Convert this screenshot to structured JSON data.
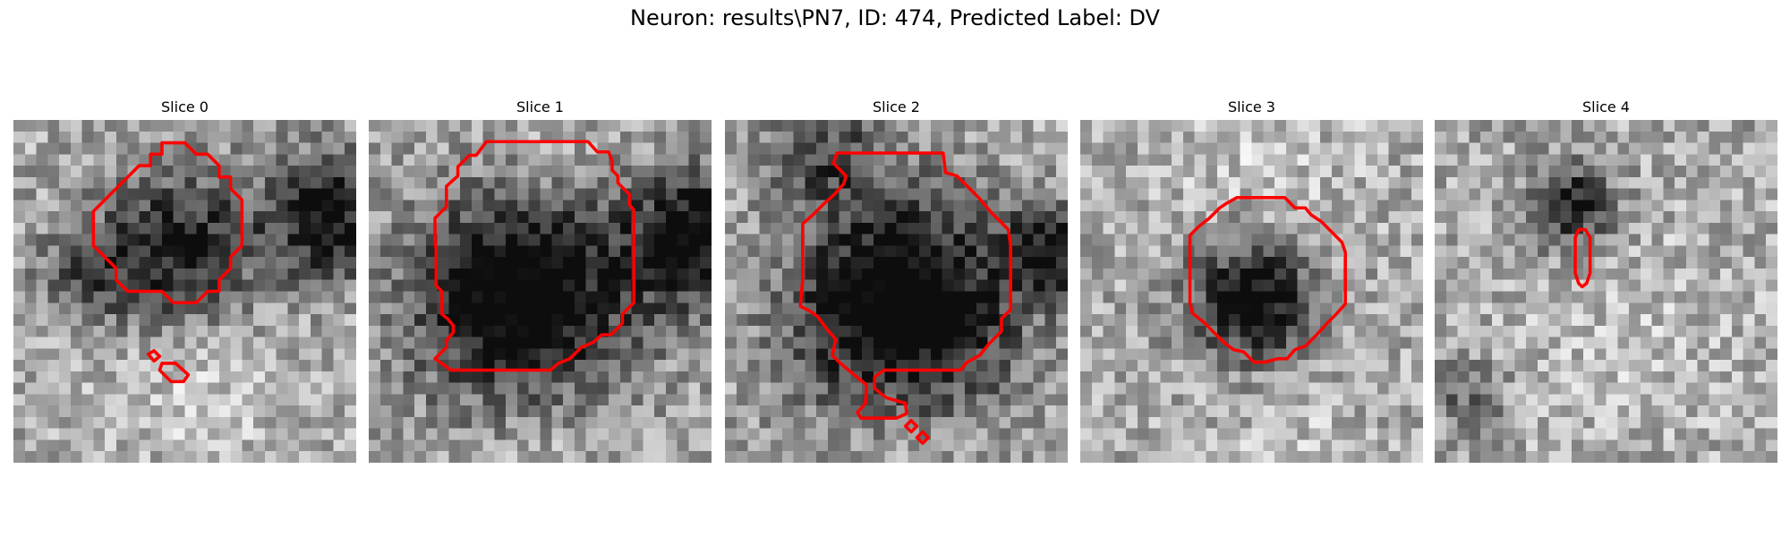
{
  "figure": {
    "title": "Neuron: results\\PN7, ID: 474, Predicted Label: DV"
  },
  "contour_color": "#ff0000",
  "slices": [
    {
      "title": "Slice 0",
      "seed": 11,
      "dark_blobs": [
        [
          0.48,
          0.38,
          0.22,
          1.0
        ],
        [
          0.92,
          0.28,
          0.17,
          1.1
        ],
        [
          0.2,
          0.45,
          0.12,
          0.6
        ]
      ],
      "light_blobs": [
        [
          0.55,
          0.78,
          0.25,
          0.6
        ]
      ]
    },
    {
      "title": "Slice 1",
      "seed": 23,
      "dark_blobs": [
        [
          0.45,
          0.52,
          0.3,
          1.4
        ],
        [
          0.95,
          0.35,
          0.18,
          1.2
        ]
      ],
      "light_blobs": [
        [
          0.5,
          0.12,
          0.2,
          0.4
        ],
        [
          0.5,
          0.9,
          0.2,
          0.5
        ]
      ]
    },
    {
      "title": "Slice 2",
      "seed": 37,
      "dark_blobs": [
        [
          0.52,
          0.55,
          0.3,
          1.5
        ],
        [
          0.96,
          0.38,
          0.12,
          1.0
        ],
        [
          0.3,
          0.1,
          0.15,
          0.6
        ]
      ],
      "light_blobs": [
        [
          0.5,
          0.88,
          0.2,
          0.5
        ]
      ]
    },
    {
      "title": "Slice 3",
      "seed": 51,
      "dark_blobs": [
        [
          0.5,
          0.52,
          0.17,
          1.3
        ]
      ],
      "light_blobs": [
        [
          0.5,
          0.2,
          0.3,
          0.5
        ],
        [
          0.6,
          0.9,
          0.2,
          0.4
        ]
      ]
    },
    {
      "title": "Slice 4",
      "seed": 67,
      "dark_blobs": [
        [
          0.4,
          0.25,
          0.12,
          1.0
        ],
        [
          0.1,
          0.8,
          0.1,
          0.5
        ]
      ],
      "light_blobs": [
        [
          0.55,
          0.6,
          0.35,
          0.4
        ]
      ]
    }
  ]
}
